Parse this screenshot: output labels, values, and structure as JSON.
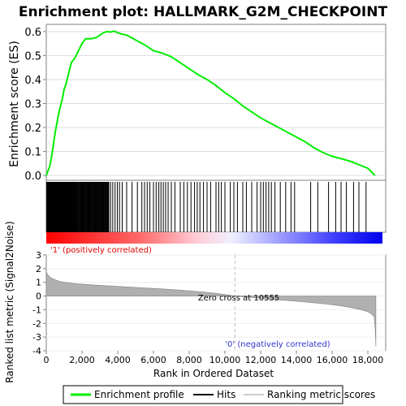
{
  "title": "Enrichment plot: HALLMARK_G2M_CHECKPOINT",
  "legend": {
    "items": [
      {
        "label": "Enrichment profile",
        "color": "#00ee00"
      },
      {
        "label": "Hits",
        "color": "#000000"
      },
      {
        "label": "Ranking metric scores",
        "color": "#cccccc"
      }
    ]
  },
  "chart_data": [
    {
      "type": "line",
      "name": "enrichment-profile",
      "ylabel": "Enrichment score (ES)",
      "ylim": [
        -0.02,
        0.63
      ],
      "yticks": [
        0.0,
        0.1,
        0.2,
        0.3,
        0.4,
        0.5,
        0.6
      ],
      "ytick_labels": [
        "0.0",
        "0.1",
        "0.2",
        "0.3",
        "0.4",
        "0.5",
        "0.6"
      ],
      "xlim": [
        0,
        19000
      ],
      "line_color": "#00ee00",
      "x": [
        0,
        100,
        200,
        300,
        400,
        500,
        600,
        700,
        800,
        900,
        1000,
        1100,
        1200,
        1300,
        1400,
        1500,
        1600,
        1800,
        2000,
        2200,
        2500,
        2800,
        3000,
        3200,
        3400,
        3600,
        3800,
        4000,
        4200,
        4500,
        5000,
        5500,
        6000,
        6500,
        7000,
        7500,
        8000,
        8500,
        9000,
        9500,
        10000,
        10500,
        11000,
        11500,
        12000,
        12500,
        13000,
        13500,
        14000,
        14500,
        15000,
        15500,
        16000,
        16500,
        17000,
        17500,
        18000,
        18400
      ],
      "y": [
        0.0,
        0.02,
        0.04,
        0.08,
        0.13,
        0.18,
        0.22,
        0.26,
        0.29,
        0.32,
        0.36,
        0.38,
        0.41,
        0.44,
        0.47,
        0.48,
        0.49,
        0.52,
        0.55,
        0.57,
        0.57,
        0.575,
        0.585,
        0.595,
        0.6,
        0.598,
        0.602,
        0.595,
        0.59,
        0.585,
        0.565,
        0.545,
        0.52,
        0.51,
        0.495,
        0.47,
        0.445,
        0.42,
        0.4,
        0.375,
        0.345,
        0.32,
        0.29,
        0.265,
        0.24,
        0.22,
        0.2,
        0.18,
        0.16,
        0.14,
        0.115,
        0.095,
        0.08,
        0.07,
        0.06,
        0.045,
        0.03,
        0.0
      ]
    },
    {
      "type": "scatter",
      "name": "hits",
      "note": "gene set member positions in ranked list",
      "xlim": [
        0,
        19000
      ],
      "dense_clusters": [
        {
          "start": 20,
          "end": 1600,
          "count": 70
        },
        {
          "start": 1600,
          "end": 3500,
          "count": 55
        }
      ],
      "positions": [
        3600,
        3720,
        3850,
        3980,
        4100,
        4250,
        4500,
        4800,
        5100,
        5350,
        5500,
        5650,
        5800,
        6000,
        6150,
        6300,
        6420,
        6550,
        6680,
        6820,
        7000,
        7200,
        7500,
        7700,
        7900,
        8100,
        8300,
        8450,
        8600,
        8800,
        9000,
        9200,
        9500,
        9650,
        9800,
        10000,
        10300,
        10500,
        10700,
        11000,
        11200,
        11500,
        11800,
        12000,
        12150,
        12300,
        12450,
        12600,
        12800,
        13100,
        13400,
        13700,
        13900,
        14800,
        15200,
        15800,
        16200,
        16500,
        16800,
        17200,
        17500,
        17900
      ]
    },
    {
      "type": "heatmap",
      "name": "rank-color-bar",
      "xlim": [
        0,
        19000
      ],
      "gradient": [
        {
          "pos": 0.0,
          "color": "#ff0000"
        },
        {
          "pos": 0.28,
          "color": "#ff6a6a"
        },
        {
          "pos": 0.44,
          "color": "#ffc8d2"
        },
        {
          "pos": 0.55,
          "color": "#f0f0ff"
        },
        {
          "pos": 0.7,
          "color": "#9a9aff"
        },
        {
          "pos": 0.86,
          "color": "#3d3dff"
        },
        {
          "pos": 1.0,
          "color": "#0000ee"
        }
      ]
    },
    {
      "type": "area",
      "name": "ranked-metric",
      "ylabel": "Ranked list metric (Signal2Noise)",
      "xlabel": "Rank in Ordered Dataset",
      "ylim": [
        -4,
        3
      ],
      "yticks": [
        3,
        2,
        1,
        0,
        -1,
        -2,
        -3,
        -4
      ],
      "ytick_labels": [
        "3",
        "2",
        "1",
        "0",
        "-1",
        "-2",
        "-3",
        "-4"
      ],
      "xlim": [
        0,
        19000
      ],
      "xticks": [
        0,
        2000,
        4000,
        6000,
        8000,
        10000,
        12000,
        14000,
        16000,
        18000
      ],
      "xtick_labels": [
        "0",
        "2,000",
        "4,000",
        "6,000",
        "8,000",
        "10,000",
        "12,000",
        "14,000",
        "16,000",
        "18,000"
      ],
      "fill_color": "#b0b0b0",
      "x": [
        0,
        50,
        150,
        300,
        500,
        800,
        1200,
        1700,
        2500,
        3500,
        4500,
        5500,
        6500,
        7500,
        8500,
        9500,
        10555,
        11500,
        12500,
        13500,
        14500,
        15500,
        16500,
        17200,
        17700,
        18000,
        18200,
        18350,
        18420,
        18450
      ],
      "y": [
        1.8,
        1.6,
        1.45,
        1.3,
        1.18,
        1.05,
        0.97,
        0.9,
        0.82,
        0.74,
        0.67,
        0.6,
        0.52,
        0.43,
        0.33,
        0.2,
        0.0,
        -0.1,
        -0.22,
        -0.33,
        -0.44,
        -0.56,
        -0.72,
        -0.88,
        -1.02,
        -1.15,
        -1.3,
        -1.5,
        -2.5,
        -3.7
      ],
      "zero_cross_value": 10555,
      "zero_cross_label": "Zero cross at 10555",
      "pos_label": "'1' (positively correlated)",
      "neg_label": "'0' (negatively correlated)"
    }
  ]
}
